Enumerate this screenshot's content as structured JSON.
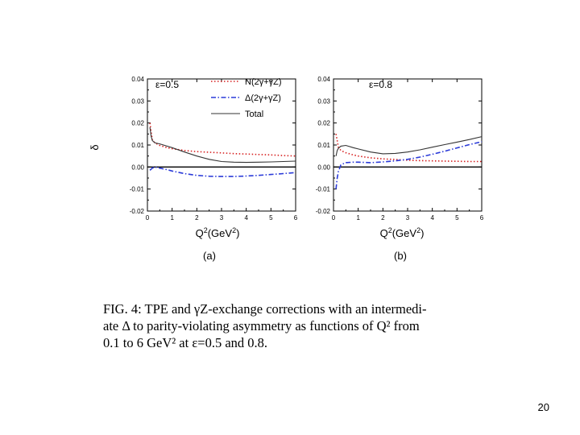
{
  "chart_data": [
    {
      "type": "line",
      "panel_label": "(a)",
      "epsilon_label": "ε=0.5",
      "ylabel": "δ",
      "xlabel_main": "Q",
      "xlabel_sup": "2",
      "xlabel_unit_open": "(GeV",
      "xlabel_unit_sup": "2",
      "xlabel_unit_close": ")",
      "xlim": [
        0,
        6
      ],
      "ylim": [
        -0.02,
        0.04
      ],
      "x_ticks": [
        "0",
        "1",
        "2",
        "3",
        "4",
        "5",
        "6"
      ],
      "y_ticks": [
        "-0.02",
        "-0.01",
        "0.00",
        "0.01",
        "0.02",
        "0.03",
        "0.04"
      ],
      "zero_line": true,
      "legend": [
        "N(2γ+γZ)",
        "Δ(2γ+γZ)",
        "Total"
      ],
      "series": [
        {
          "name": "N(2γ+γZ)",
          "color": "#d62020",
          "style": "dotted",
          "x": [
            0.1,
            0.15,
            0.2,
            0.3,
            0.5,
            0.8,
            1.0,
            1.5,
            2.0,
            2.5,
            3.0,
            3.5,
            4.0,
            4.5,
            5.0,
            5.5,
            6.0
          ],
          "values": [
            0.02,
            0.016,
            0.0125,
            0.011,
            0.0098,
            0.0088,
            0.0083,
            0.0075,
            0.007,
            0.0067,
            0.0064,
            0.0061,
            0.0059,
            0.0057,
            0.0055,
            0.0052,
            0.005
          ]
        },
        {
          "name": "Δ(2γ+γZ)",
          "color": "#2a3ad8",
          "style": "dashdot",
          "x": [
            0.1,
            0.2,
            0.3,
            0.5,
            0.8,
            1.0,
            1.5,
            2.0,
            2.5,
            3.0,
            3.5,
            4.0,
            4.5,
            5.0,
            5.5,
            6.0
          ],
          "values": [
            -0.0015,
            -0.0005,
            0.0,
            -0.0005,
            -0.0012,
            -0.0018,
            -0.003,
            -0.0038,
            -0.0042,
            -0.0043,
            -0.0043,
            -0.0041,
            -0.0038,
            -0.0034,
            -0.003,
            -0.0025
          ]
        },
        {
          "name": "Total",
          "color": "#333333",
          "style": "solid",
          "x": [
            0.1,
            0.15,
            0.2,
            0.3,
            0.5,
            0.8,
            1.0,
            1.5,
            2.0,
            2.5,
            3.0,
            3.5,
            4.0,
            4.5,
            5.0,
            5.5,
            6.0
          ],
          "values": [
            0.018,
            0.014,
            0.012,
            0.011,
            0.0105,
            0.0095,
            0.0088,
            0.0068,
            0.005,
            0.0035,
            0.0025,
            0.0022,
            0.0021,
            0.0022,
            0.0023,
            0.0025,
            0.0027
          ]
        }
      ]
    },
    {
      "type": "line",
      "panel_label": "(b)",
      "epsilon_label": "ε=0.8",
      "ylabel": "",
      "xlabel_main": "Q",
      "xlabel_sup": "2",
      "xlabel_unit_open": "(GeV",
      "xlabel_unit_sup": "2",
      "xlabel_unit_close": ")",
      "xlim": [
        0,
        6
      ],
      "ylim": [
        -0.02,
        0.04
      ],
      "x_ticks": [
        "0",
        "1",
        "2",
        "3",
        "4",
        "5",
        "6"
      ],
      "y_ticks": [
        "-0.02",
        "-0.01",
        "0.00",
        "0.01",
        "0.02",
        "0.03",
        "0.04"
      ],
      "zero_line": true,
      "legend": [],
      "series": [
        {
          "name": "N(2γ+γZ)",
          "color": "#d62020",
          "style": "dotted",
          "x": [
            0.1,
            0.15,
            0.2,
            0.3,
            0.5,
            0.8,
            1.0,
            1.5,
            2.0,
            2.5,
            3.0,
            3.5,
            4.0,
            4.5,
            5.0,
            5.5,
            6.0
          ],
          "values": [
            0.015,
            0.012,
            0.009,
            0.0075,
            0.0065,
            0.0055,
            0.005,
            0.0042,
            0.0037,
            0.0034,
            0.0031,
            0.0029,
            0.0028,
            0.0027,
            0.0026,
            0.0025,
            0.0025
          ]
        },
        {
          "name": "Δ(2γ+γZ)",
          "color": "#2a3ad8",
          "style": "dashdot",
          "x": [
            0.1,
            0.15,
            0.2,
            0.3,
            0.5,
            0.8,
            1.0,
            1.5,
            2.0,
            2.5,
            3.0,
            3.5,
            4.0,
            4.5,
            5.0,
            5.5,
            6.0
          ],
          "values": [
            -0.01,
            -0.005,
            -0.002,
            0.001,
            0.002,
            0.0022,
            0.0022,
            0.002,
            0.0023,
            0.0028,
            0.0035,
            0.0045,
            0.0058,
            0.0072,
            0.0087,
            0.0102,
            0.0115
          ]
        },
        {
          "name": "Total",
          "color": "#333333",
          "style": "solid",
          "x": [
            0.1,
            0.15,
            0.2,
            0.3,
            0.5,
            0.8,
            1.0,
            1.5,
            2.0,
            2.5,
            3.0,
            3.5,
            4.0,
            4.5,
            5.0,
            5.5,
            6.0
          ],
          "values": [
            0.005,
            0.0075,
            0.0085,
            0.0095,
            0.0098,
            0.0088,
            0.0082,
            0.0068,
            0.006,
            0.0062,
            0.0068,
            0.0078,
            0.009,
            0.0102,
            0.0113,
            0.0125,
            0.0138
          ]
        }
      ]
    }
  ],
  "caption": {
    "line1": "FIG. 4: TPE and γZ-exchange corrections with an intermedi-",
    "line2": "ate Δ to parity-violating asymmetry as functions of Q² from",
    "line3": "0.1 to 6 GeV² at ε=0.5 and 0.8."
  },
  "page_number": "20"
}
